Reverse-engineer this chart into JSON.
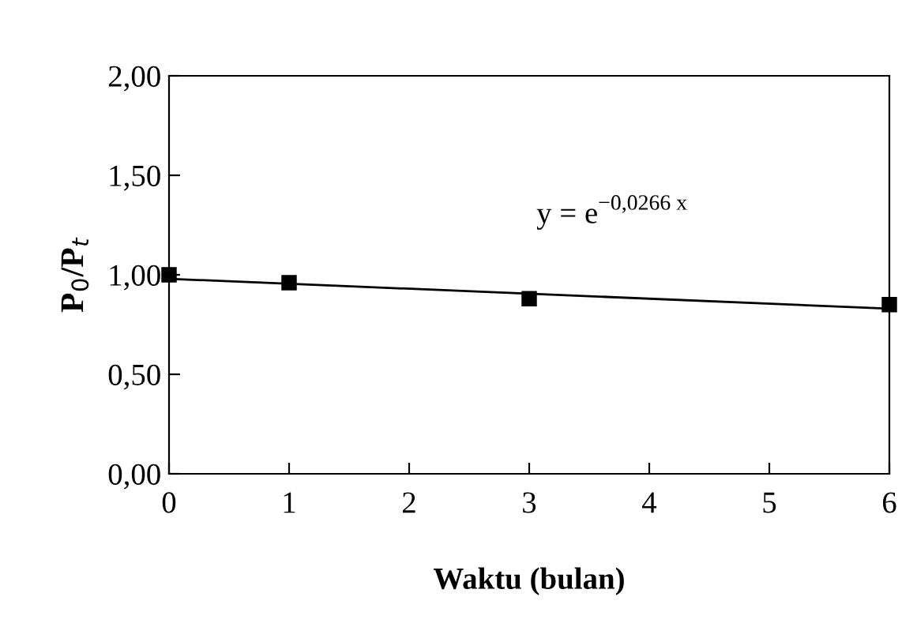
{
  "chart_data": {
    "type": "scatter",
    "xlabel": "Waktu (bulan)",
    "ylabel": "P$_{0}$/P$_{t}$",
    "series": [
      {
        "color": "#000000",
        "marker": "square",
        "x": [
          0,
          1,
          3,
          6
        ],
        "values": [
          1.0,
          0.96,
          0.88,
          0.85
        ]
      },
      {
        "type": "line",
        "color": "#000000",
        "marker": "none",
        "line_style": "solid",
        "x": [
          0,
          6
        ],
        "values": [
          0.98,
          0.83
        ]
      }
    ],
    "annotations": [
      "y = e$^{−0,0266 x}$"
    ],
    "xlim": [
      0,
      6
    ],
    "xticks": [
      0,
      1,
      2,
      3,
      4,
      5,
      6
    ],
    "ylim": [
      0,
      2
    ],
    "yticks": [
      {
        "value": 0,
        "label": "0,00"
      },
      {
        "value": 0.5,
        "label": "0,50"
      },
      {
        "value": 1,
        "label": "1,00"
      },
      {
        "value": 1.5,
        "label": "1,50"
      },
      {
        "value": 2,
        "label": "2,00"
      }
    ],
    "grid": false,
    "legend": false
  }
}
